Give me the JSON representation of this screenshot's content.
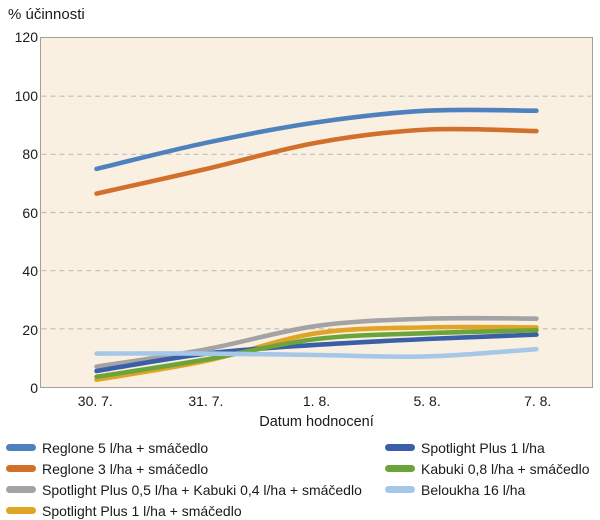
{
  "title": "% účinnosti",
  "x_axis_title": "Datum hodnocení",
  "colors": {
    "plot_background": "#FAF0E2",
    "plot_border": "#A0A0A0",
    "gridline": "#BDBDBD",
    "text": "#1A1A1A"
  },
  "chart_data": {
    "type": "line",
    "title": "% účinnosti",
    "xlabel": "Datum hodnocení",
    "ylabel": "% účinnosti",
    "categories": [
      "30. 7.",
      "31. 7.",
      "1. 8.",
      "5. 8.",
      "7. 8."
    ],
    "ylim": [
      0,
      120
    ],
    "ytick_step": 20,
    "grid": "horizontal-dashed",
    "legend_position": "bottom-two-columns",
    "line_style": "smooth, thick, round caps",
    "series": [
      {
        "name": "Reglone 5 l/ha + smáčedlo",
        "color": "#4E81BD",
        "legend_column": 0,
        "values": [
          75,
          84,
          91,
          95,
          95
        ]
      },
      {
        "name": "Reglone 3 l/ha + smáčedlo",
        "color": "#D2702B",
        "legend_column": 0,
        "values": [
          66.5,
          75,
          84,
          88.5,
          88
        ]
      },
      {
        "name": "Spotlight Plus 0,5 l/ha + Kabuki 0,4 l/ha + smáčedlo",
        "color": "#A3A3A3",
        "legend_column": 0,
        "values": [
          7,
          13,
          21,
          23.5,
          23.5
        ]
      },
      {
        "name": "Spotlight Plus 1 l/ha + smáčedlo",
        "color": "#E0A526",
        "legend_column": 0,
        "values": [
          2.5,
          9,
          18.5,
          20.5,
          20.5
        ]
      },
      {
        "name": "Spotlight Plus 1 l/ha",
        "color": "#3A5EA8",
        "legend_column": 1,
        "values": [
          5.5,
          11.5,
          14.5,
          16.5,
          18
        ]
      },
      {
        "name": "Kabuki 0,8 l/ha + smáčedlo",
        "color": "#6BA43A",
        "legend_column": 1,
        "values": [
          3.5,
          9.5,
          16.5,
          18.5,
          19.5
        ]
      },
      {
        "name": "Beloukha 16 l/ha",
        "color": "#A6C7E8",
        "legend_column": 1,
        "values": [
          11.5,
          11.5,
          11,
          10.5,
          13
        ]
      }
    ]
  }
}
